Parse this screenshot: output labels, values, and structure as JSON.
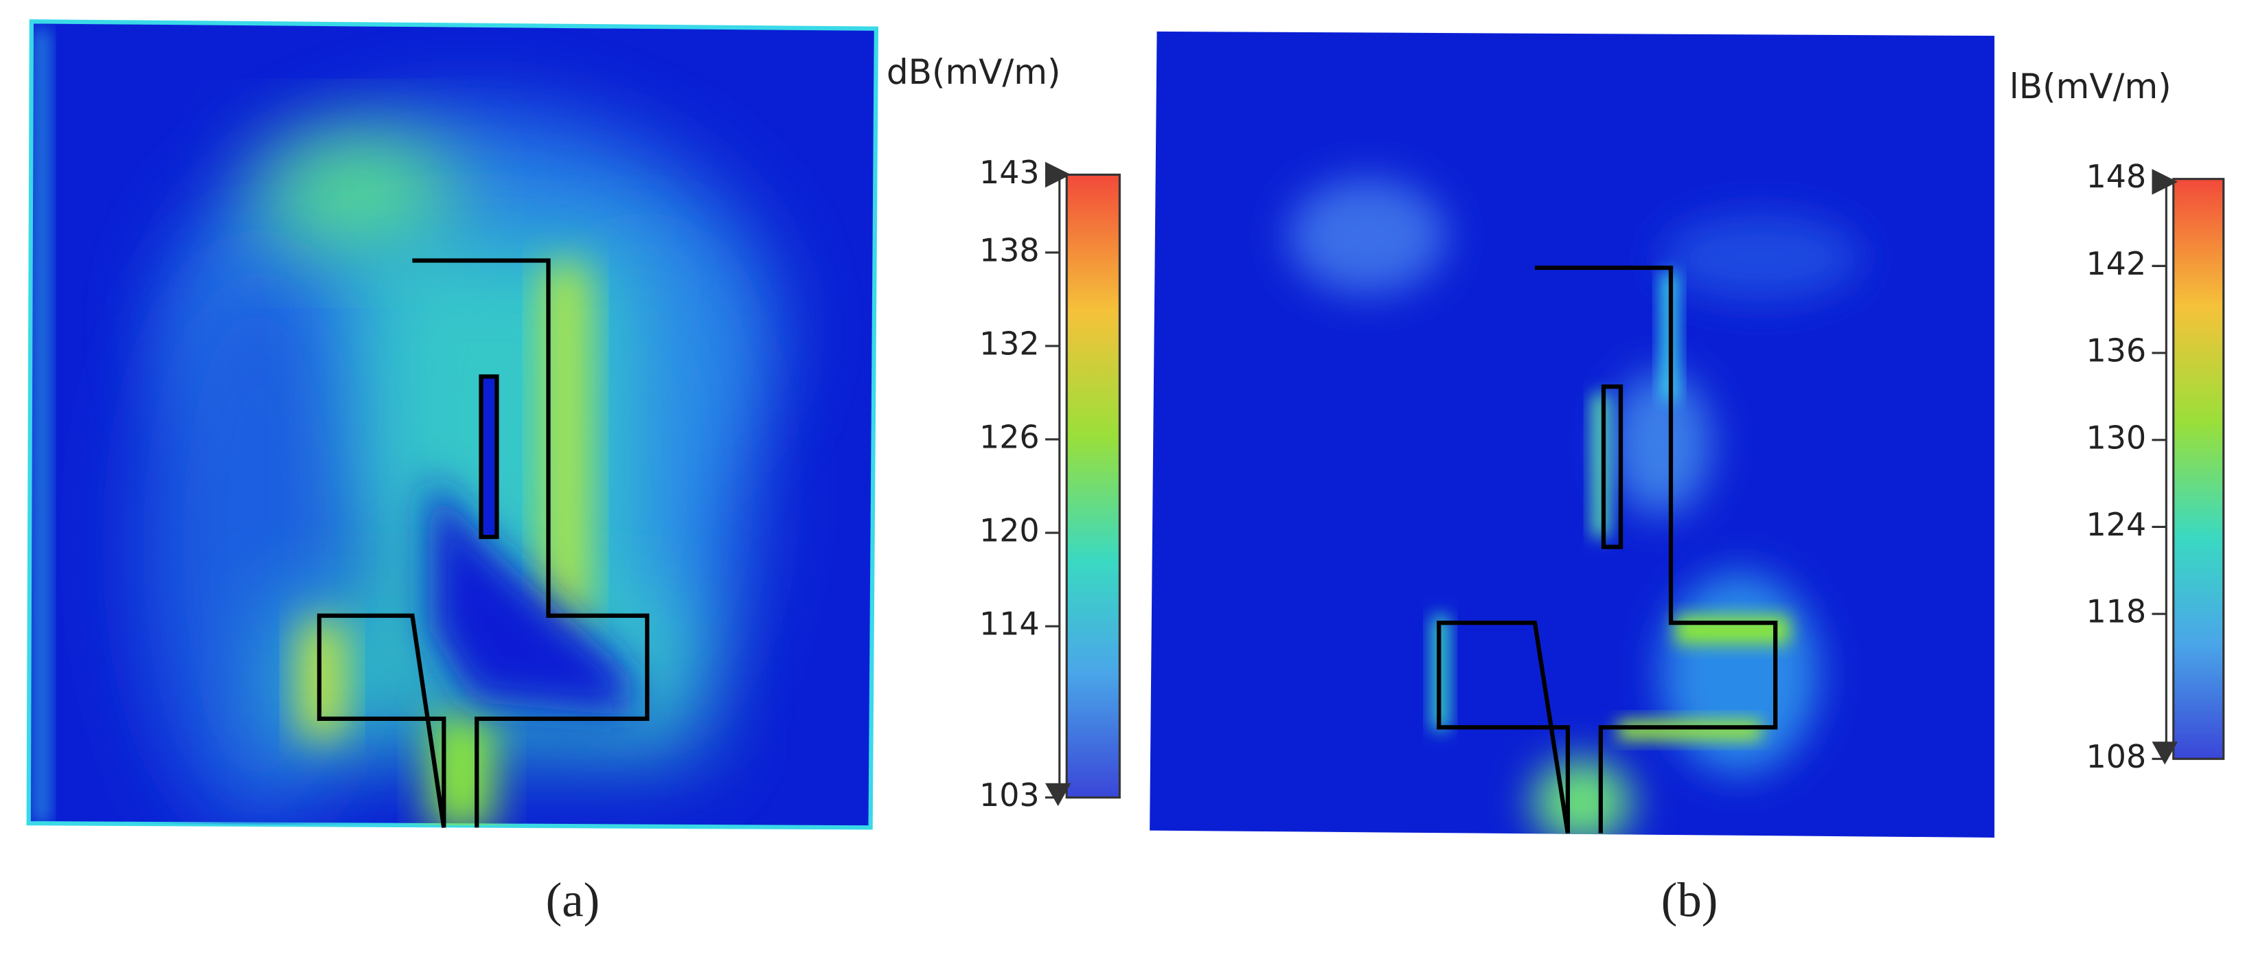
{
  "panels": [
    {
      "label": "(a)",
      "unit": "dB(mV/m)",
      "colorbar": {
        "lim": [
          103,
          143
        ],
        "ticks": [
          143,
          138,
          132,
          126,
          120,
          114,
          103
        ]
      }
    },
    {
      "label": "(b)",
      "unit": "lB(mV/m)",
      "colorbar": {
        "lim": [
          108,
          148
        ],
        "ticks": [
          148,
          142,
          136,
          130,
          124,
          118,
          108
        ]
      }
    }
  ]
}
